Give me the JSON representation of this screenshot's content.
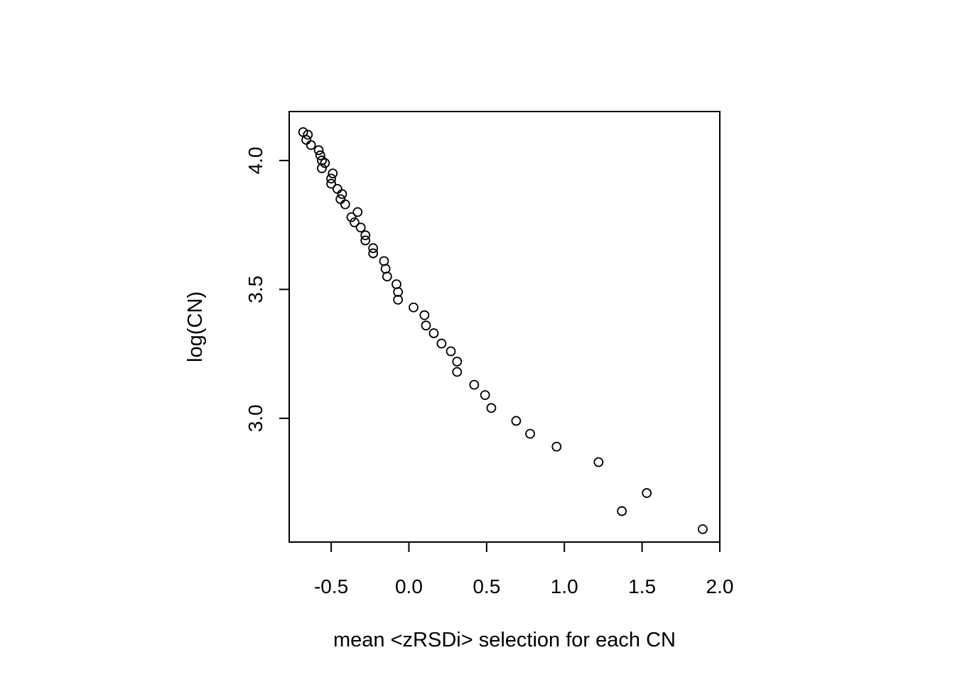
{
  "chart_data": {
    "type": "scatter",
    "title": "",
    "xlabel": "mean <zRSDi> selection for each CN",
    "ylabel": "log(CN)",
    "xlim": [
      -0.77,
      2.0
    ],
    "ylim": [
      2.52,
      4.19
    ],
    "xticks": [
      -0.5,
      0.0,
      0.5,
      1.0,
      1.5,
      2.0
    ],
    "xtick_labels": [
      "-0.5",
      "0.0",
      "0.5",
      "1.0",
      "1.5",
      "2.0"
    ],
    "yticks": [
      3.0,
      3.5,
      4.0
    ],
    "ytick_labels": [
      "3.0",
      "3.5",
      "4.0"
    ],
    "grid": false,
    "legend": "none",
    "marker": "open-circle",
    "colors": {
      "marker": "#000000",
      "axis": "#000000",
      "background": "#ffffff"
    },
    "series": [
      {
        "x": [
          -0.68,
          -0.65,
          -0.66,
          -0.63,
          -0.58,
          -0.57,
          -0.56,
          -0.54,
          -0.56,
          -0.49,
          -0.5,
          -0.5,
          -0.46,
          -0.43,
          -0.44,
          -0.41,
          -0.33,
          -0.37,
          -0.35,
          -0.31,
          -0.28,
          -0.28,
          -0.23,
          -0.23,
          -0.16,
          -0.15,
          -0.14,
          -0.08,
          -0.07,
          -0.07,
          0.03,
          0.1,
          0.11,
          0.16,
          0.21,
          0.27,
          0.31,
          0.31,
          0.42,
          0.49,
          0.53,
          0.69,
          0.78,
          0.95,
          1.22,
          1.37,
          1.53,
          1.89
        ],
        "y": [
          4.11,
          4.1,
          4.08,
          4.06,
          4.04,
          4.02,
          4.0,
          3.99,
          3.97,
          3.95,
          3.93,
          3.91,
          3.89,
          3.87,
          3.85,
          3.83,
          3.8,
          3.78,
          3.76,
          3.74,
          3.71,
          3.69,
          3.66,
          3.64,
          3.61,
          3.58,
          3.55,
          3.52,
          3.49,
          3.46,
          3.43,
          3.4,
          3.36,
          3.33,
          3.29,
          3.26,
          3.22,
          3.18,
          3.13,
          3.09,
          3.04,
          2.99,
          2.94,
          2.89,
          2.83,
          2.64,
          2.71,
          2.57
        ]
      }
    ]
  }
}
